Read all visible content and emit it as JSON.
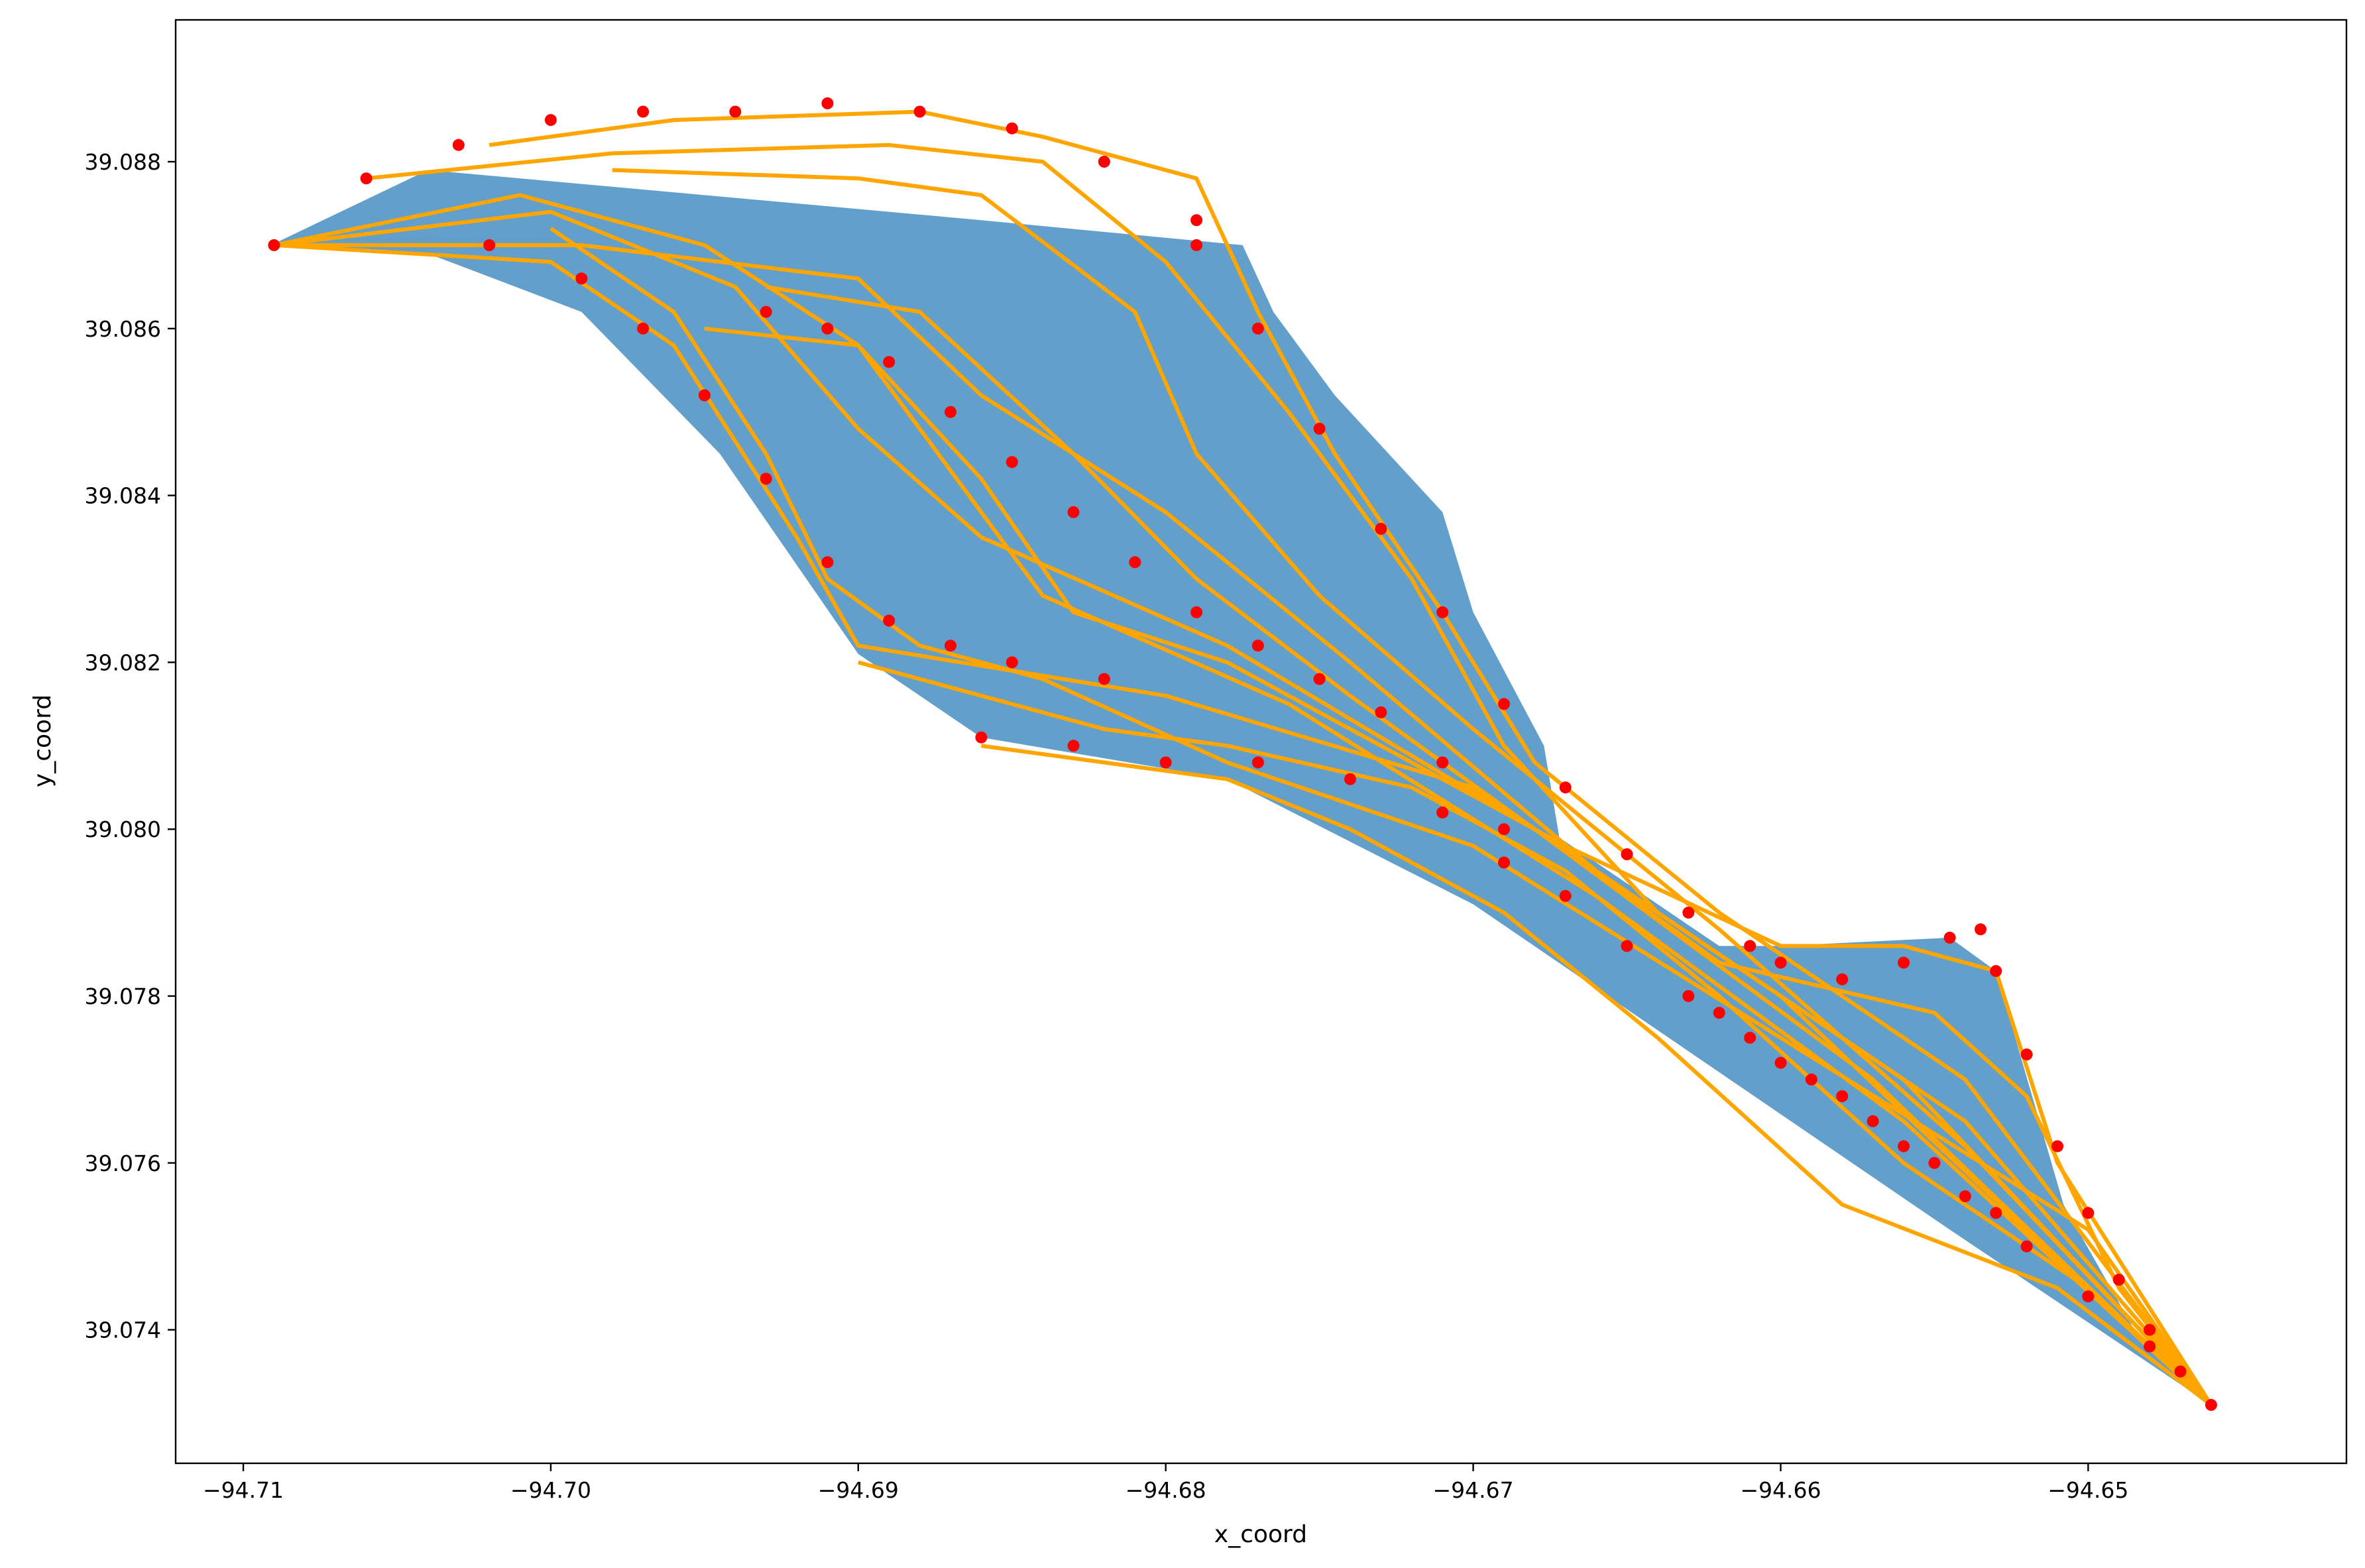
{
  "chart_data": {
    "type": "scatter",
    "title": "",
    "xlabel": "x_coord",
    "ylabel": "y_coord",
    "xlim": [
      -94.7122,
      -94.6416
    ],
    "ylim": [
      39.0724,
      39.0897
    ],
    "grid": false,
    "legend": "none",
    "x_ticks": [
      -94.71,
      -94.7,
      -94.69,
      -94.68,
      -94.67,
      -94.66,
      -94.65
    ],
    "x_tick_labels": [
      "−94.71",
      "−94.70",
      "−94.69",
      "−94.68",
      "−94.67",
      "−94.66",
      "−94.65"
    ],
    "y_ticks": [
      39.074,
      39.076,
      39.078,
      39.08,
      39.082,
      39.084,
      39.086,
      39.088
    ],
    "y_tick_labels": [
      "39.074",
      "39.076",
      "39.078",
      "39.080",
      "39.082",
      "39.084",
      "39.086",
      "39.088"
    ],
    "colors": {
      "area": "#629fcb",
      "lines": "#ffa500",
      "points": "#ff0000"
    },
    "area_polygon": [
      [
        -94.7091,
        39.087
      ],
      [
        -94.704,
        39.0879
      ],
      [
        -94.698,
        39.0877
      ],
      [
        -94.689,
        39.0874
      ],
      [
        -94.686,
        39.0873
      ],
      [
        -94.6775,
        39.087
      ],
      [
        -94.6765,
        39.0862
      ],
      [
        -94.6745,
        39.0852
      ],
      [
        -94.671,
        39.0838
      ],
      [
        -94.67,
        39.0826
      ],
      [
        -94.6677,
        39.081
      ],
      [
        -94.6672,
        39.0799
      ],
      [
        -94.662,
        39.0786
      ],
      [
        -94.66,
        39.0786
      ],
      [
        -94.6545,
        39.0787
      ],
      [
        -94.653,
        39.0783
      ],
      [
        -94.6508,
        39.0755
      ],
      [
        -94.6485,
        39.074
      ],
      [
        -94.646,
        39.0731
      ],
      [
        -94.6545,
        39.0752
      ],
      [
        -94.67,
        39.0791
      ],
      [
        -94.678,
        39.0806
      ],
      [
        -94.686,
        39.0811
      ],
      [
        -94.69,
        39.0821
      ],
      [
        -94.6945,
        39.0845
      ],
      [
        -94.699,
        39.0862
      ],
      [
        -94.704,
        39.0869
      ]
    ],
    "line_paths": [
      [
        [
          -94.709,
          39.087
        ],
        [
          -94.701,
          39.0876
        ],
        [
          -94.695,
          39.087
        ],
        [
          -94.69,
          39.0858
        ],
        [
          -94.684,
          39.0828
        ],
        [
          -94.676,
          39.0815
        ],
        [
          -94.666,
          39.0792
        ],
        [
          -94.656,
          39.0765
        ],
        [
          -94.646,
          39.0731
        ]
      ],
      [
        [
          -94.709,
          39.087
        ],
        [
          -94.7,
          39.0874
        ],
        [
          -94.694,
          39.0865
        ],
        [
          -94.69,
          39.0848
        ],
        [
          -94.686,
          39.0835
        ],
        [
          -94.678,
          39.0822
        ],
        [
          -94.668,
          39.08
        ],
        [
          -94.657,
          39.077
        ],
        [
          -94.646,
          39.0731
        ]
      ],
      [
        [
          -94.709,
          39.087
        ],
        [
          -94.7,
          39.0868
        ],
        [
          -94.696,
          39.0858
        ],
        [
          -94.692,
          39.0835
        ],
        [
          -94.69,
          39.0822
        ],
        [
          -94.68,
          39.0816
        ],
        [
          -94.67,
          39.0805
        ],
        [
          -94.66,
          39.078
        ],
        [
          -94.646,
          39.0731
        ]
      ],
      [
        [
          -94.709,
          39.087
        ],
        [
          -94.699,
          39.087
        ],
        [
          -94.69,
          39.0866
        ],
        [
          -94.686,
          39.0852
        ],
        [
          -94.68,
          39.0838
        ],
        [
          -94.674,
          39.082
        ],
        [
          -94.666,
          39.0795
        ],
        [
          -94.654,
          39.0765
        ],
        [
          -94.646,
          39.0731
        ]
      ],
      [
        [
          -94.706,
          39.0878
        ],
        [
          -94.698,
          39.0881
        ],
        [
          -94.689,
          39.0882
        ],
        [
          -94.684,
          39.088
        ],
        [
          -94.68,
          39.0868
        ],
        [
          -94.676,
          39.085
        ],
        [
          -94.672,
          39.083
        ],
        [
          -94.669,
          39.081
        ],
        [
          -94.664,
          39.079
        ],
        [
          -94.656,
          39.077
        ],
        [
          -94.646,
          39.0731
        ]
      ],
      [
        [
          -94.702,
          39.0882
        ],
        [
          -94.696,
          39.0885
        ],
        [
          -94.688,
          39.0886
        ],
        [
          -94.684,
          39.0883
        ],
        [
          -94.679,
          39.0878
        ],
        [
          -94.677,
          39.0862
        ],
        [
          -94.6745,
          39.0845
        ],
        [
          -94.671,
          39.0826
        ],
        [
          -94.668,
          39.0808
        ],
        [
          -94.662,
          39.079
        ],
        [
          -94.654,
          39.077
        ],
        [
          -94.646,
          39.0731
        ]
      ],
      [
        [
          -94.698,
          39.0879
        ],
        [
          -94.69,
          39.0878
        ],
        [
          -94.686,
          39.0876
        ],
        [
          -94.681,
          39.0862
        ],
        [
          -94.679,
          39.0845
        ],
        [
          -94.675,
          39.0828
        ],
        [
          -94.67,
          39.0812
        ],
        [
          -94.662,
          39.0788
        ],
        [
          -94.654,
          39.0762
        ],
        [
          -94.646,
          39.0731
        ]
      ],
      [
        [
          -94.7,
          39.0872
        ],
        [
          -94.696,
          39.0862
        ],
        [
          -94.693,
          39.0845
        ],
        [
          -94.691,
          39.083
        ],
        [
          -94.688,
          39.0822
        ],
        [
          -94.684,
          39.0818
        ],
        [
          -94.678,
          39.0808
        ],
        [
          -94.67,
          39.0798
        ],
        [
          -94.66,
          39.0775
        ],
        [
          -94.65,
          39.0752
        ],
        [
          -94.646,
          39.0731
        ]
      ],
      [
        [
          -94.695,
          39.086
        ],
        [
          -94.69,
          39.0858
        ],
        [
          -94.686,
          39.0842
        ],
        [
          -94.683,
          39.0826
        ],
        [
          -94.678,
          39.082
        ],
        [
          -94.672,
          39.0808
        ],
        [
          -94.667,
          39.0798
        ],
        [
          -94.66,
          39.0786
        ],
        [
          -94.656,
          39.0786
        ],
        [
          -94.653,
          39.0783
        ],
        [
          -94.651,
          39.076
        ],
        [
          -94.646,
          39.0731
        ]
      ],
      [
        [
          -94.693,
          39.0865
        ],
        [
          -94.688,
          39.0862
        ],
        [
          -94.683,
          39.0845
        ],
        [
          -94.679,
          39.083
        ],
        [
          -94.674,
          39.0816
        ],
        [
          -94.668,
          39.08
        ],
        [
          -94.662,
          39.0784
        ],
        [
          -94.655,
          39.0778
        ],
        [
          -94.652,
          39.0768
        ],
        [
          -94.649,
          39.0745
        ],
        [
          -94.646,
          39.0731
        ]
      ],
      [
        [
          -94.69,
          39.082
        ],
        [
          -94.686,
          39.0816
        ],
        [
          -94.682,
          39.0812
        ],
        [
          -94.678,
          39.081
        ],
        [
          -94.672,
          39.0805
        ],
        [
          -94.667,
          39.0795
        ],
        [
          -94.662,
          39.078
        ],
        [
          -94.656,
          39.076
        ],
        [
          -94.65,
          39.0745
        ],
        [
          -94.646,
          39.0731
        ]
      ],
      [
        [
          -94.686,
          39.081
        ],
        [
          -94.682,
          39.0808
        ],
        [
          -94.678,
          39.0806
        ],
        [
          -94.674,
          39.08
        ],
        [
          -94.669,
          39.079
        ],
        [
          -94.664,
          39.0775
        ],
        [
          -94.658,
          39.0755
        ],
        [
          -94.651,
          39.0745
        ],
        [
          -94.646,
          39.0731
        ]
      ]
    ],
    "point_series": [
      {
        "x": [
          -94.709,
          -94.706,
          -94.703,
          -94.7,
          -94.697,
          -94.694,
          -94.691,
          -94.688,
          -94.685,
          -94.682,
          -94.679
        ],
        "y": [
          39.087,
          39.0878,
          39.0882,
          39.0885,
          39.0886,
          39.0886,
          39.0887,
          39.0886,
          39.0884,
          39.088,
          39.0873
        ]
      },
      {
        "x": [
          -94.702,
          -94.699,
          -94.697,
          -94.695,
          -94.693,
          -94.691,
          -94.689,
          -94.687,
          -94.685,
          -94.682
        ],
        "y": [
          39.087,
          39.0866,
          39.086,
          39.0852,
          39.0842,
          39.0832,
          39.0825,
          39.0822,
          39.082,
          39.0818
        ]
      },
      {
        "x": [
          -94.693,
          -94.691,
          -94.689,
          -94.687,
          -94.685,
          -94.683,
          -94.681,
          -94.679,
          -94.677,
          -94.675,
          -94.673,
          -94.671,
          -94.669
        ],
        "y": [
          39.0862,
          39.086,
          39.0856,
          39.085,
          39.0844,
          39.0838,
          39.0832,
          39.0826,
          39.0822,
          39.0818,
          39.0814,
          39.0808,
          39.08
        ]
      },
      {
        "x": [
          -94.679,
          -94.677,
          -94.675,
          -94.673,
          -94.671,
          -94.669,
          -94.667,
          -94.665,
          -94.663,
          -94.661
        ],
        "y": [
          39.087,
          39.086,
          39.0848,
          39.0836,
          39.0826,
          39.0815,
          39.0805,
          39.0797,
          39.079,
          39.0786
        ]
      },
      {
        "x": [
          -94.66,
          -94.658,
          -94.656,
          -94.6545,
          -94.6535,
          -94.653,
          -94.652,
          -94.651,
          -94.65,
          -94.649,
          -94.648,
          -94.647,
          -94.646
        ],
        "y": [
          39.0784,
          39.0782,
          39.0784,
          39.0787,
          39.0788,
          39.0783,
          39.0773,
          39.0762,
          39.0754,
          39.0746,
          39.074,
          39.0735,
          39.0731
        ]
      },
      {
        "x": [
          -94.662,
          -94.66,
          -94.658,
          -94.656,
          -94.654,
          -94.652,
          -94.65,
          -94.648
        ],
        "y": [
          39.0778,
          39.0772,
          39.0768,
          39.0762,
          39.0756,
          39.075,
          39.0744,
          39.0738
        ]
      },
      {
        "x": [
          -94.667,
          -94.665,
          -94.663,
          -94.661,
          -94.659,
          -94.657,
          -94.655,
          -94.653
        ],
        "y": [
          39.0792,
          39.0786,
          39.078,
          39.0775,
          39.077,
          39.0765,
          39.076,
          39.0754
        ]
      },
      {
        "x": [
          -94.686,
          -94.683,
          -94.68,
          -94.677,
          -94.674,
          -94.671,
          -94.669
        ],
        "y": [
          39.0811,
          39.081,
          39.0808,
          39.0808,
          39.0806,
          39.0802,
          39.0796
        ]
      }
    ]
  }
}
